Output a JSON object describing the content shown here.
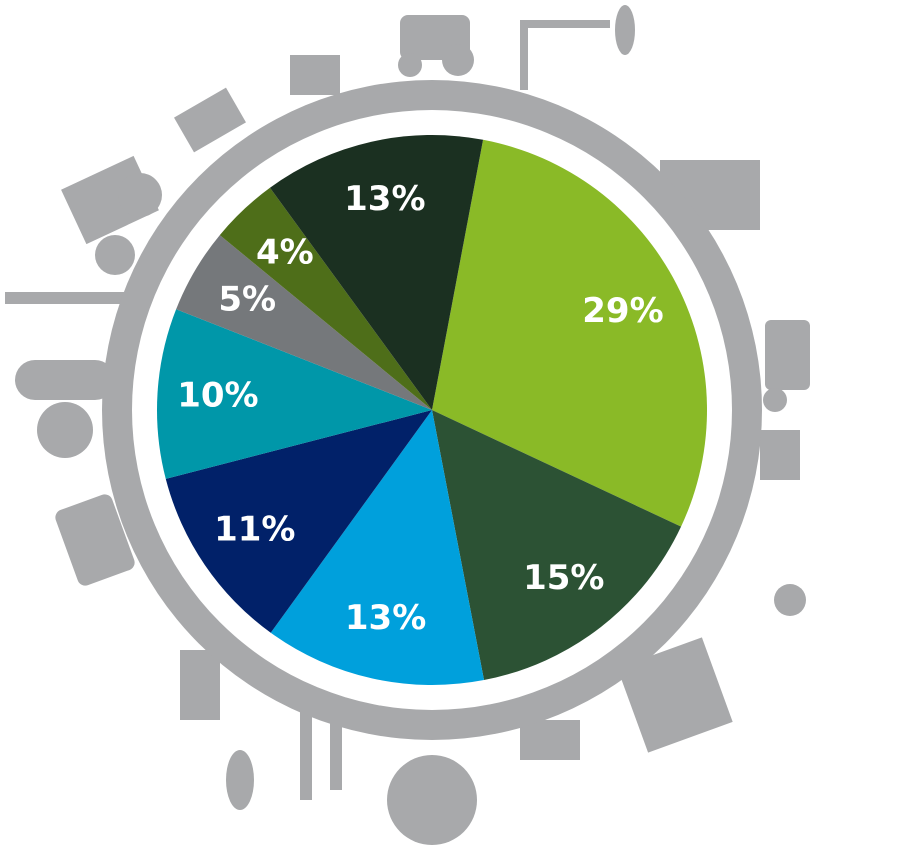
{
  "chart_data": {
    "type": "pie",
    "values": [
      29,
      15,
      13,
      11,
      10,
      5,
      4,
      13
    ],
    "value_labels": [
      "29%",
      "15%",
      "13%",
      "11%",
      "10%",
      "5%",
      "4%",
      "13%"
    ],
    "colors": [
      "#8aba27",
      "#2c5234",
      "#00a0dc",
      "#012169",
      "#0097a9",
      "#75787b",
      "#4e6e19",
      "#1b3021"
    ]
  }
}
